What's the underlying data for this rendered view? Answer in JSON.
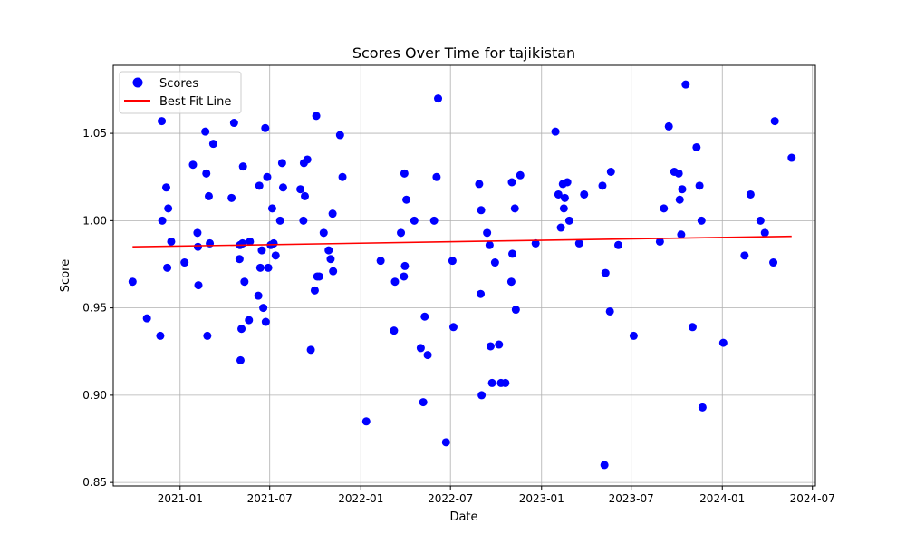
{
  "chart_data": {
    "type": "scatter",
    "title": "Scores Over Time for tajikistan",
    "xlabel": "Date",
    "ylabel": "Score",
    "xlim": [
      "2020-08-19",
      "2024-07-07"
    ],
    "ylim": [
      0.848,
      1.089
    ],
    "x_ticks": [
      "2021-01",
      "2021-07",
      "2022-01",
      "2022-07",
      "2023-01",
      "2023-07",
      "2024-01",
      "2024-07"
    ],
    "y_ticks": [
      "0.85",
      "0.90",
      "0.95",
      "1.00",
      "1.05"
    ],
    "grid": true,
    "legend_position": "top-left",
    "series": [
      {
        "name": "Scores",
        "kind": "scatter",
        "color": "#0000ff",
        "points": [
          [
            "2020-09-27",
            0.965
          ],
          [
            "2020-10-26",
            0.944
          ],
          [
            "2020-11-22",
            0.934
          ],
          [
            "2020-11-25",
            1.057
          ],
          [
            "2020-11-26",
            1.0
          ],
          [
            "2020-12-04",
            1.019
          ],
          [
            "2020-12-06",
            0.973
          ],
          [
            "2020-12-08",
            1.007
          ],
          [
            "2020-12-14",
            0.988
          ],
          [
            "2021-01-10",
            0.976
          ],
          [
            "2021-01-27",
            1.032
          ],
          [
            "2021-02-05",
            0.993
          ],
          [
            "2021-02-06",
            0.985
          ],
          [
            "2021-02-07",
            0.963
          ],
          [
            "2021-02-21",
            1.051
          ],
          [
            "2021-02-23",
            1.027
          ],
          [
            "2021-02-25",
            0.934
          ],
          [
            "2021-02-28",
            1.014
          ],
          [
            "2021-03-02",
            0.987
          ],
          [
            "2021-03-09",
            1.044
          ],
          [
            "2021-04-15",
            1.013
          ],
          [
            "2021-04-20",
            1.056
          ],
          [
            "2021-05-01",
            0.978
          ],
          [
            "2021-05-02",
            0.986
          ],
          [
            "2021-05-03",
            0.92
          ],
          [
            "2021-05-05",
            0.938
          ],
          [
            "2021-05-07",
            0.987
          ],
          [
            "2021-05-08",
            1.031
          ],
          [
            "2021-05-11",
            0.965
          ],
          [
            "2021-05-20",
            0.943
          ],
          [
            "2021-05-22",
            0.988
          ],
          [
            "2021-06-08",
            0.957
          ],
          [
            "2021-06-10",
            1.02
          ],
          [
            "2021-06-12",
            0.973
          ],
          [
            "2021-06-15",
            0.983
          ],
          [
            "2021-06-18",
            0.95
          ],
          [
            "2021-06-22",
            1.053
          ],
          [
            "2021-06-23",
            0.942
          ],
          [
            "2021-06-26",
            1.025
          ],
          [
            "2021-06-28",
            0.973
          ],
          [
            "2021-07-03",
            0.986
          ],
          [
            "2021-07-06",
            1.007
          ],
          [
            "2021-07-09",
            0.987
          ],
          [
            "2021-07-13",
            0.98
          ],
          [
            "2021-07-22",
            1.0
          ],
          [
            "2021-07-26",
            1.033
          ],
          [
            "2021-07-28",
            1.019
          ],
          [
            "2021-09-01",
            1.018
          ],
          [
            "2021-09-07",
            1.0
          ],
          [
            "2021-09-08",
            1.033
          ],
          [
            "2021-09-10",
            1.014
          ],
          [
            "2021-09-15",
            1.035
          ],
          [
            "2021-09-22",
            0.926
          ],
          [
            "2021-09-30",
            0.96
          ],
          [
            "2021-10-03",
            1.06
          ],
          [
            "2021-10-05",
            0.968
          ],
          [
            "2021-10-09",
            0.968
          ],
          [
            "2021-10-18",
            0.993
          ],
          [
            "2021-10-28",
            0.983
          ],
          [
            "2021-11-01",
            0.978
          ],
          [
            "2021-11-05",
            1.004
          ],
          [
            "2021-11-06",
            0.971
          ],
          [
            "2021-11-20",
            1.049
          ],
          [
            "2021-11-25",
            1.025
          ],
          [
            "2022-01-12",
            0.885
          ],
          [
            "2022-02-10",
            0.977
          ],
          [
            "2022-03-09",
            0.937
          ],
          [
            "2022-03-11",
            0.965
          ],
          [
            "2022-03-23",
            0.993
          ],
          [
            "2022-03-29",
            0.968
          ],
          [
            "2022-03-30",
            1.027
          ],
          [
            "2022-03-31",
            0.974
          ],
          [
            "2022-04-03",
            1.012
          ],
          [
            "2022-04-19",
            1.0
          ],
          [
            "2022-05-02",
            0.927
          ],
          [
            "2022-05-07",
            0.896
          ],
          [
            "2022-05-10",
            0.945
          ],
          [
            "2022-05-16",
            0.923
          ],
          [
            "2022-05-29",
            1.0
          ],
          [
            "2022-06-03",
            1.025
          ],
          [
            "2022-06-06",
            1.07
          ],
          [
            "2022-06-22",
            0.873
          ],
          [
            "2022-07-05",
            0.977
          ],
          [
            "2022-07-07",
            0.939
          ],
          [
            "2022-08-28",
            1.021
          ],
          [
            "2022-08-31",
            0.958
          ],
          [
            "2022-09-01",
            1.006
          ],
          [
            "2022-09-02",
            0.9
          ],
          [
            "2022-09-13",
            0.993
          ],
          [
            "2022-09-18",
            0.986
          ],
          [
            "2022-09-20",
            0.928
          ],
          [
            "2022-09-23",
            0.907
          ],
          [
            "2022-09-29",
            0.976
          ],
          [
            "2022-10-07",
            0.929
          ],
          [
            "2022-10-11",
            0.907
          ],
          [
            "2022-10-20",
            0.907
          ],
          [
            "2022-11-01",
            0.965
          ],
          [
            "2022-11-02",
            1.022
          ],
          [
            "2022-11-03",
            0.981
          ],
          [
            "2022-11-08",
            1.007
          ],
          [
            "2022-11-10",
            0.949
          ],
          [
            "2022-11-19",
            1.026
          ],
          [
            "2022-12-20",
            0.987
          ],
          [
            "2023-01-29",
            1.051
          ],
          [
            "2023-02-04",
            1.015
          ],
          [
            "2023-02-09",
            0.996
          ],
          [
            "2023-02-13",
            1.021
          ],
          [
            "2023-02-15",
            1.007
          ],
          [
            "2023-02-17",
            1.013
          ],
          [
            "2023-02-22",
            1.022
          ],
          [
            "2023-02-26",
            1.0
          ],
          [
            "2023-03-18",
            0.987
          ],
          [
            "2023-03-28",
            1.015
          ],
          [
            "2023-05-04",
            1.02
          ],
          [
            "2023-05-08",
            0.86
          ],
          [
            "2023-05-10",
            0.97
          ],
          [
            "2023-05-19",
            0.948
          ],
          [
            "2023-05-21",
            1.028
          ],
          [
            "2023-06-05",
            0.986
          ],
          [
            "2023-07-06",
            0.934
          ],
          [
            "2023-08-28",
            0.988
          ],
          [
            "2023-09-05",
            1.007
          ],
          [
            "2023-09-15",
            1.054
          ],
          [
            "2023-09-26",
            1.028
          ],
          [
            "2023-10-05",
            1.027
          ],
          [
            "2023-10-07",
            1.012
          ],
          [
            "2023-10-10",
            0.992
          ],
          [
            "2023-10-12",
            1.018
          ],
          [
            "2023-10-19",
            1.078
          ],
          [
            "2023-11-02",
            0.939
          ],
          [
            "2023-11-10",
            1.042
          ],
          [
            "2023-11-16",
            1.02
          ],
          [
            "2023-11-20",
            1.0
          ],
          [
            "2023-11-22",
            0.893
          ],
          [
            "2024-01-03",
            0.93
          ],
          [
            "2024-02-15",
            0.98
          ],
          [
            "2024-02-27",
            1.015
          ],
          [
            "2024-03-18",
            1.0
          ],
          [
            "2024-03-27",
            0.993
          ],
          [
            "2024-04-13",
            0.976
          ],
          [
            "2024-04-16",
            1.057
          ],
          [
            "2024-05-20",
            1.036
          ]
        ]
      },
      {
        "name": "Best Fit Line",
        "kind": "line",
        "color": "#ff0000",
        "points": [
          [
            "2020-09-27",
            0.985
          ],
          [
            "2024-05-20",
            0.991
          ]
        ]
      }
    ]
  }
}
